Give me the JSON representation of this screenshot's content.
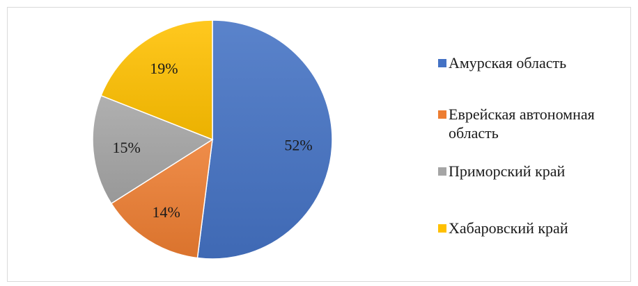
{
  "chart_data": {
    "type": "pie",
    "title": "",
    "slices": [
      {
        "name": "Амурская область",
        "value": 52,
        "label": "52%",
        "color": "#4472c4"
      },
      {
        "name": "Еврейская автономная область",
        "value": 14,
        "label": "14%",
        "color": "#ed7d31"
      },
      {
        "name": "Приморский край",
        "value": 15,
        "label": "15%",
        "color": "#a5a5a5"
      },
      {
        "name": "Хабаровский край",
        "value": 19,
        "label": "19%",
        "color": "#ffc000"
      }
    ],
    "start_angle_deg": 0,
    "direction": "clockwise",
    "legend_position": "right"
  }
}
